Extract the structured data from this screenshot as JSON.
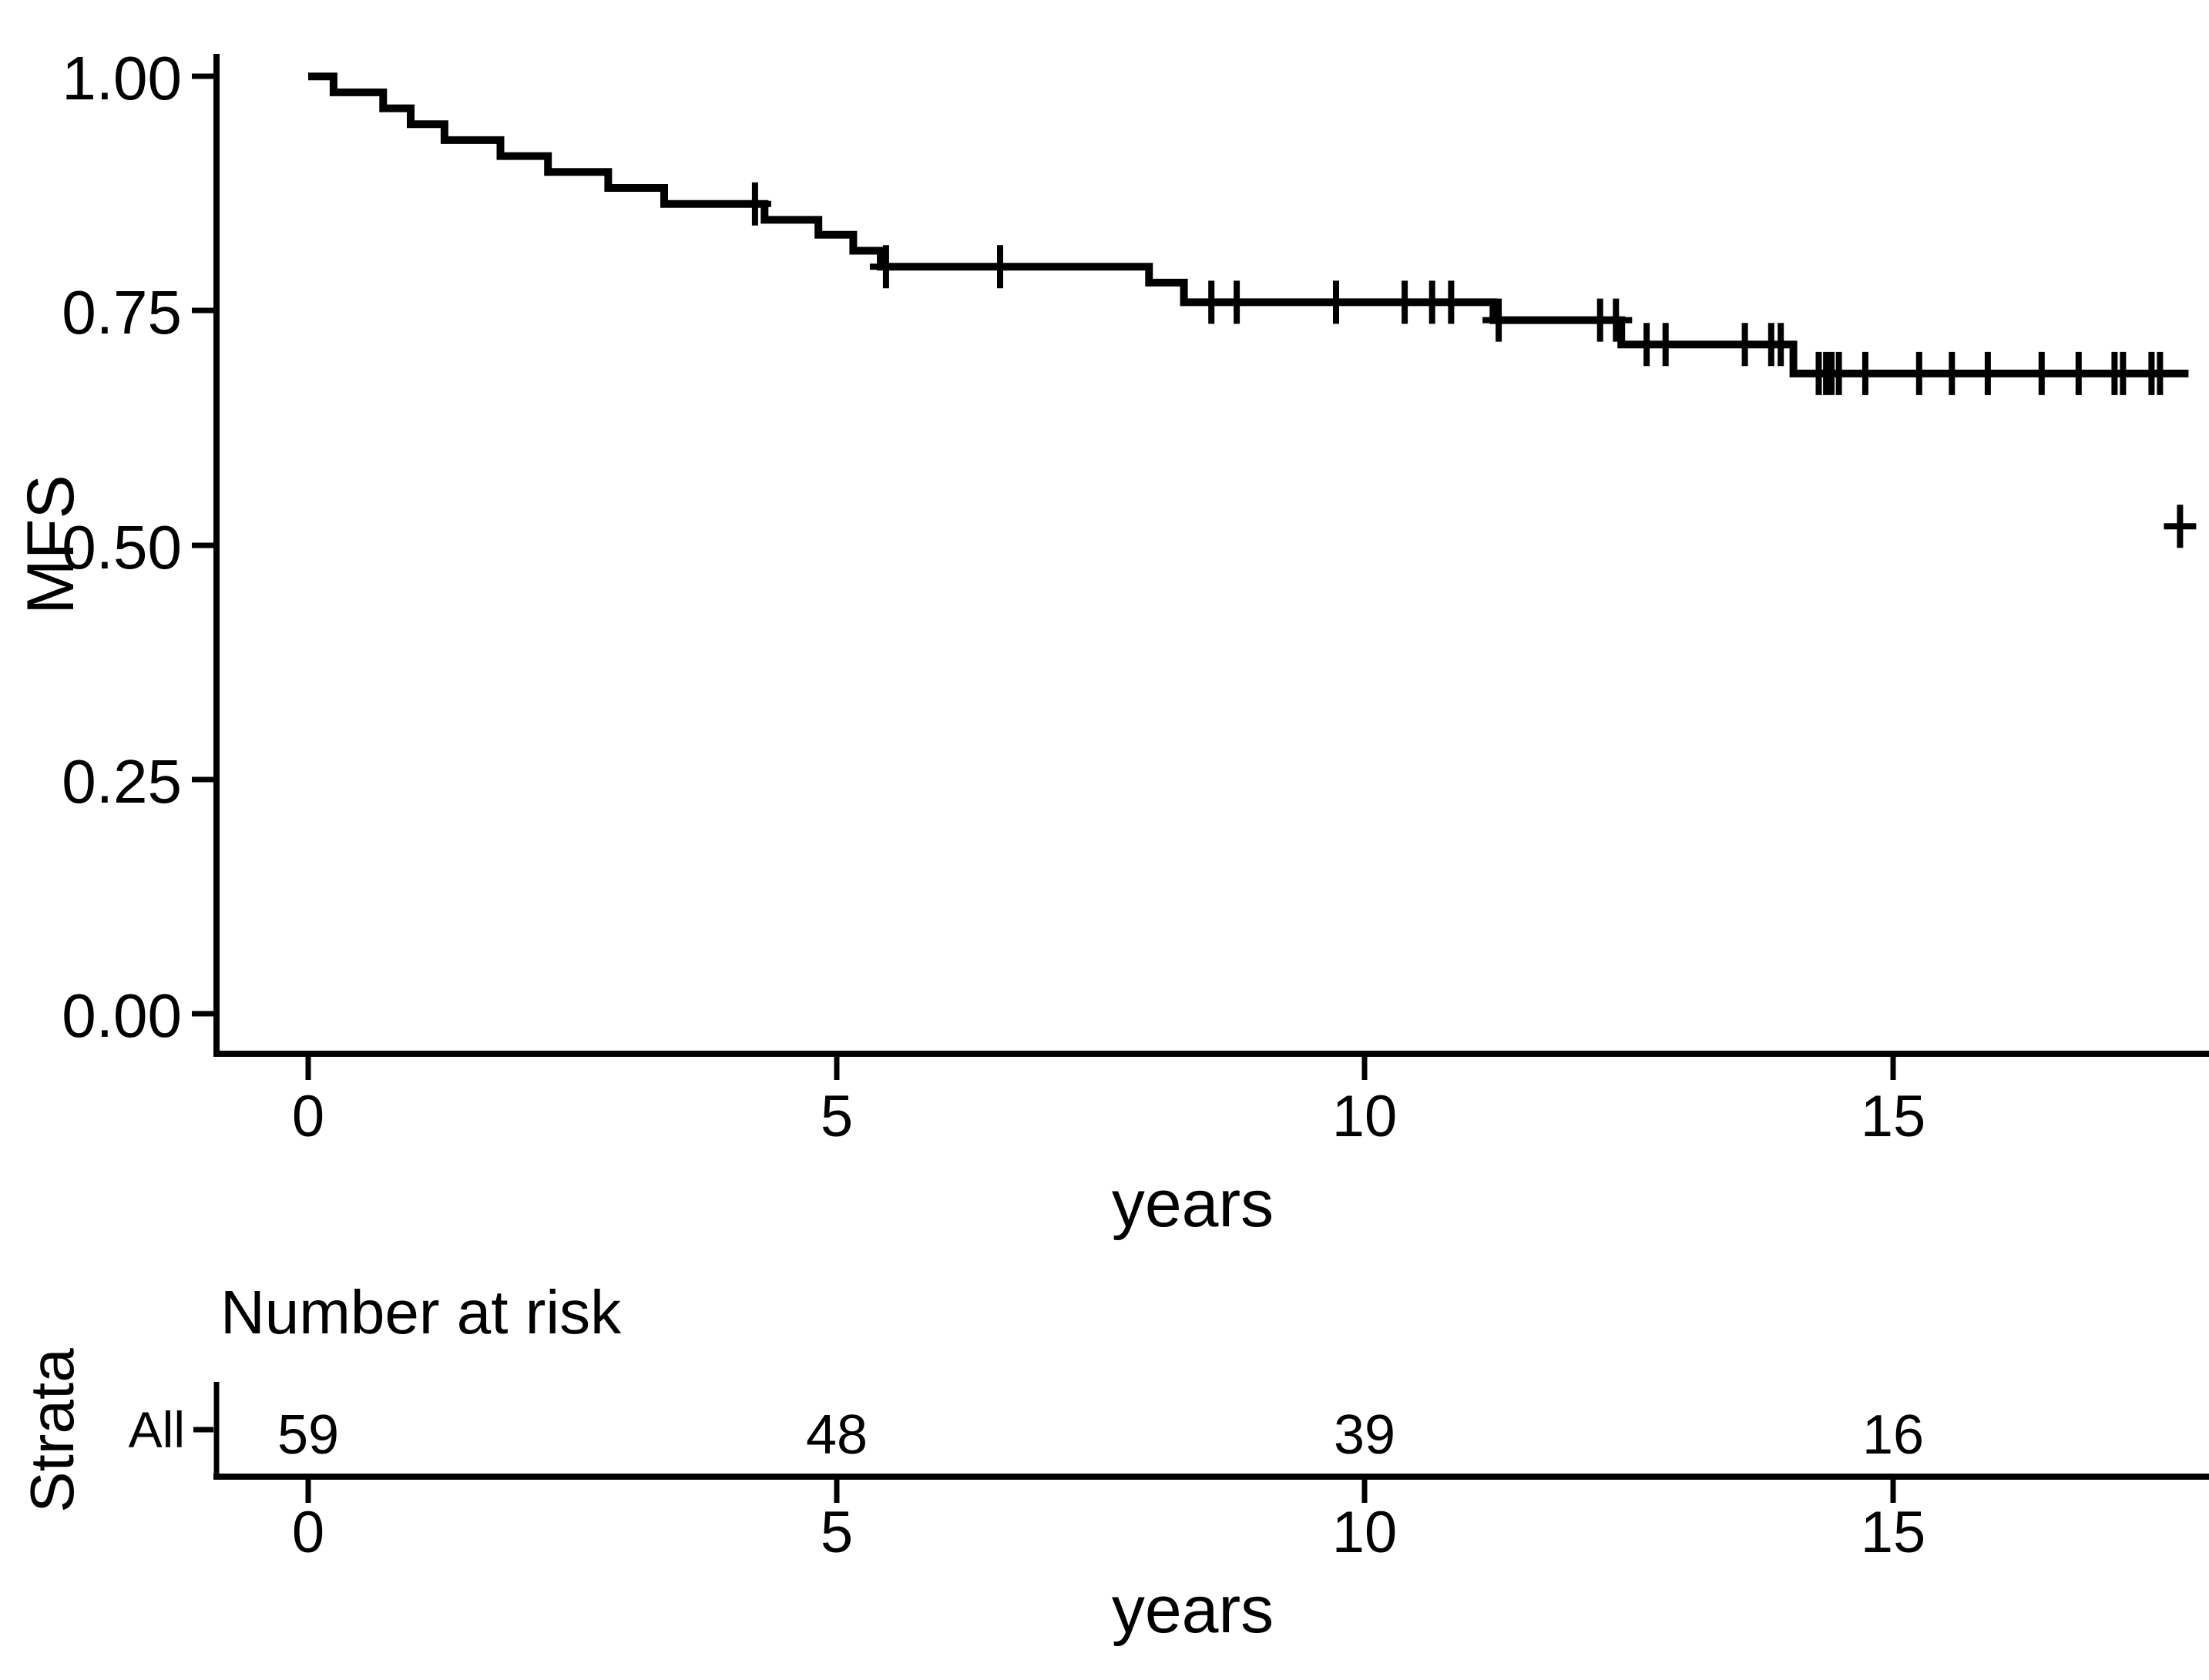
{
  "page": {
    "background": "#ffffff",
    "ink": "#000000"
  },
  "survival_plot": {
    "y_axis_label": "MFS",
    "x_axis_label": "years",
    "y_ticks": [
      "1.00",
      "0.75",
      "0.50",
      "0.25",
      "0.00"
    ],
    "x_ticks": [
      "0",
      "5",
      "10",
      "15"
    ]
  },
  "risk_table": {
    "title": "Number at risk",
    "strata_axis_label": "Strata",
    "row_label": "All",
    "counts": [
      "59",
      "48",
      "39",
      "16"
    ],
    "x_ticks": [
      "0",
      "5",
      "10",
      "15"
    ],
    "x_axis_label": "years"
  },
  "chart_data": {
    "type": "line",
    "subtype": "kaplan_meier_step",
    "title": "",
    "xlabel": "years",
    "ylabel": "MFS",
    "xlim": [
      0,
      18
    ],
    "ylim": [
      0,
      1
    ],
    "x_ticks": [
      0,
      5,
      10,
      15
    ],
    "y_ticks": [
      0.0,
      0.25,
      0.5,
      0.75,
      1.0
    ],
    "grid": false,
    "legend": "none",
    "line_color": "#000000",
    "series": [
      {
        "name": "All",
        "start_survival": 1.0,
        "steps": [
          [
            0.24,
            0.983
          ],
          [
            0.71,
            0.966
          ],
          [
            0.97,
            0.949
          ],
          [
            1.29,
            0.932
          ],
          [
            1.82,
            0.915
          ],
          [
            2.27,
            0.898
          ],
          [
            2.84,
            0.881
          ],
          [
            3.37,
            0.864
          ],
          [
            4.32,
            0.847
          ],
          [
            4.83,
            0.831
          ],
          [
            5.16,
            0.814
          ],
          [
            5.42,
            0.797
          ],
          [
            7.96,
            0.78
          ],
          [
            8.29,
            0.759
          ],
          [
            11.22,
            0.74
          ],
          [
            12.43,
            0.714
          ],
          [
            14.06,
            0.683
          ]
        ],
        "end_time": 17.8,
        "censor_marks": [
          [
            4.23,
            0.864
          ],
          [
            5.47,
            0.797
          ],
          [
            6.55,
            0.797
          ],
          [
            8.55,
            0.759
          ],
          [
            8.79,
            0.759
          ],
          [
            9.73,
            0.759
          ],
          [
            10.38,
            0.759
          ],
          [
            10.64,
            0.759
          ],
          [
            10.82,
            0.759
          ],
          [
            11.27,
            0.74
          ],
          [
            12.23,
            0.74
          ],
          [
            12.38,
            0.74
          ],
          [
            12.67,
            0.714
          ],
          [
            12.85,
            0.714
          ],
          [
            13.6,
            0.714
          ],
          [
            13.85,
            0.714
          ],
          [
            13.94,
            0.714
          ],
          [
            14.3,
            0.683
          ],
          [
            14.37,
            0.683
          ],
          [
            14.42,
            0.683
          ],
          [
            14.49,
            0.683
          ],
          [
            14.74,
            0.683
          ],
          [
            15.25,
            0.683
          ],
          [
            15.56,
            0.683
          ],
          [
            15.9,
            0.683
          ],
          [
            16.41,
            0.683
          ],
          [
            16.76,
            0.683
          ],
          [
            17.1,
            0.683
          ],
          [
            17.18,
            0.683
          ],
          [
            17.45,
            0.683
          ],
          [
            17.53,
            0.683
          ]
        ],
        "outlier_censor_mark": [
          17.72,
          0.52
        ]
      }
    ],
    "risk_table": {
      "strata": [
        "All"
      ],
      "times": [
        0,
        5,
        10,
        15
      ],
      "at_risk": [
        [
          59,
          48,
          39,
          16
        ]
      ]
    }
  }
}
